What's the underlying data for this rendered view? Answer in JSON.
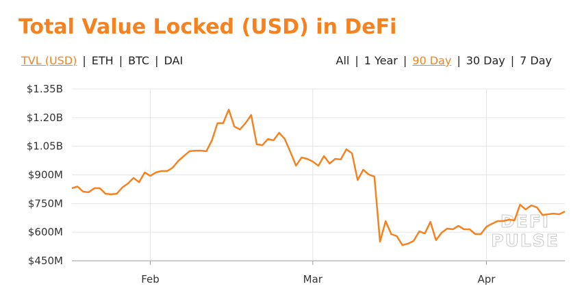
{
  "chart_data": {
    "type": "line",
    "title": "Total Value Locked (USD) in DeFi",
    "left_options": [
      {
        "label": "TVL (USD)",
        "selected": true
      },
      {
        "label": "ETH",
        "selected": false
      },
      {
        "label": "BTC",
        "selected": false
      },
      {
        "label": "DAI",
        "selected": false
      }
    ],
    "right_options": [
      {
        "label": "All",
        "selected": false
      },
      {
        "label": "1 Year",
        "selected": false
      },
      {
        "label": "90 Day",
        "selected": true
      },
      {
        "label": "30 Day",
        "selected": false
      },
      {
        "label": "7 Day",
        "selected": false
      }
    ],
    "watermark": [
      "DEFI",
      "PULSE"
    ],
    "categories": [
      null,
      null,
      null,
      null,
      null,
      null,
      null,
      null,
      null,
      null,
      null,
      null,
      null,
      null,
      "Feb",
      null,
      null,
      null,
      null,
      null,
      null,
      null,
      null,
      null,
      null,
      null,
      null,
      null,
      null,
      null,
      null,
      null,
      null,
      null,
      null,
      null,
      null,
      null,
      null,
      null,
      null,
      null,
      null,
      "Mar",
      null,
      null,
      null,
      null,
      null,
      null,
      null,
      null,
      null,
      null,
      null,
      null,
      null,
      null,
      null,
      null,
      null,
      null,
      null,
      null,
      null,
      null,
      null,
      null,
      null,
      null,
      null,
      null,
      null,
      null,
      "Apr",
      null,
      null,
      null,
      null,
      null,
      null,
      null,
      null,
      null,
      null,
      null,
      null,
      null,
      null
    ],
    "series": [
      {
        "name": "TVL (USD)",
        "color": "#f5821f",
        "values": [
          830000000,
          839000000,
          812000000,
          809000000,
          830000000,
          830000000,
          801000000,
          798000000,
          801000000,
          834000000,
          855000000,
          884000000,
          862000000,
          913000000,
          895000000,
          913000000,
          920000000,
          920000000,
          938000000,
          974000000,
          999000000,
          1024000000,
          1027000000,
          1027000000,
          1024000000,
          1081000000,
          1171000000,
          1171000000,
          1242000000,
          1153000000,
          1138000000,
          1171000000,
          1214000000,
          1060000000,
          1056000000,
          1088000000,
          1081000000,
          1121000000,
          1088000000,
          1020000000,
          948000000,
          991000000,
          984000000,
          970000000,
          948000000,
          999000000,
          959000000,
          984000000,
          981000000,
          1034000000,
          1013000000,
          873000000,
          927000000,
          902000000,
          891000000,
          550000000,
          658000000,
          590000000,
          579000000,
          532000000,
          540000000,
          554000000,
          604000000,
          593000000,
          654000000,
          558000000,
          597000000,
          619000000,
          615000000,
          633000000,
          615000000,
          615000000,
          590000000,
          590000000,
          629000000,
          644000000,
          658000000,
          658000000,
          665000000,
          662000000,
          744000000,
          719000000,
          740000000,
          730000000,
          690000000,
          694000000,
          697000000,
          694000000,
          708000000
        ]
      }
    ],
    "ylim": [
      450000000,
      1350000000
    ],
    "yticks": [
      {
        "value": 450000000,
        "label": "$450M"
      },
      {
        "value": 600000000,
        "label": "$600M"
      },
      {
        "value": 750000000,
        "label": "$750M"
      },
      {
        "value": 900000000,
        "label": "$900M"
      },
      {
        "value": 1050000000,
        "label": "$1.05B"
      },
      {
        "value": 1200000000,
        "label": "$1.20B"
      },
      {
        "value": 1350000000,
        "label": "$1.35B"
      }
    ],
    "grid": true,
    "title_color": "#f5821f"
  }
}
